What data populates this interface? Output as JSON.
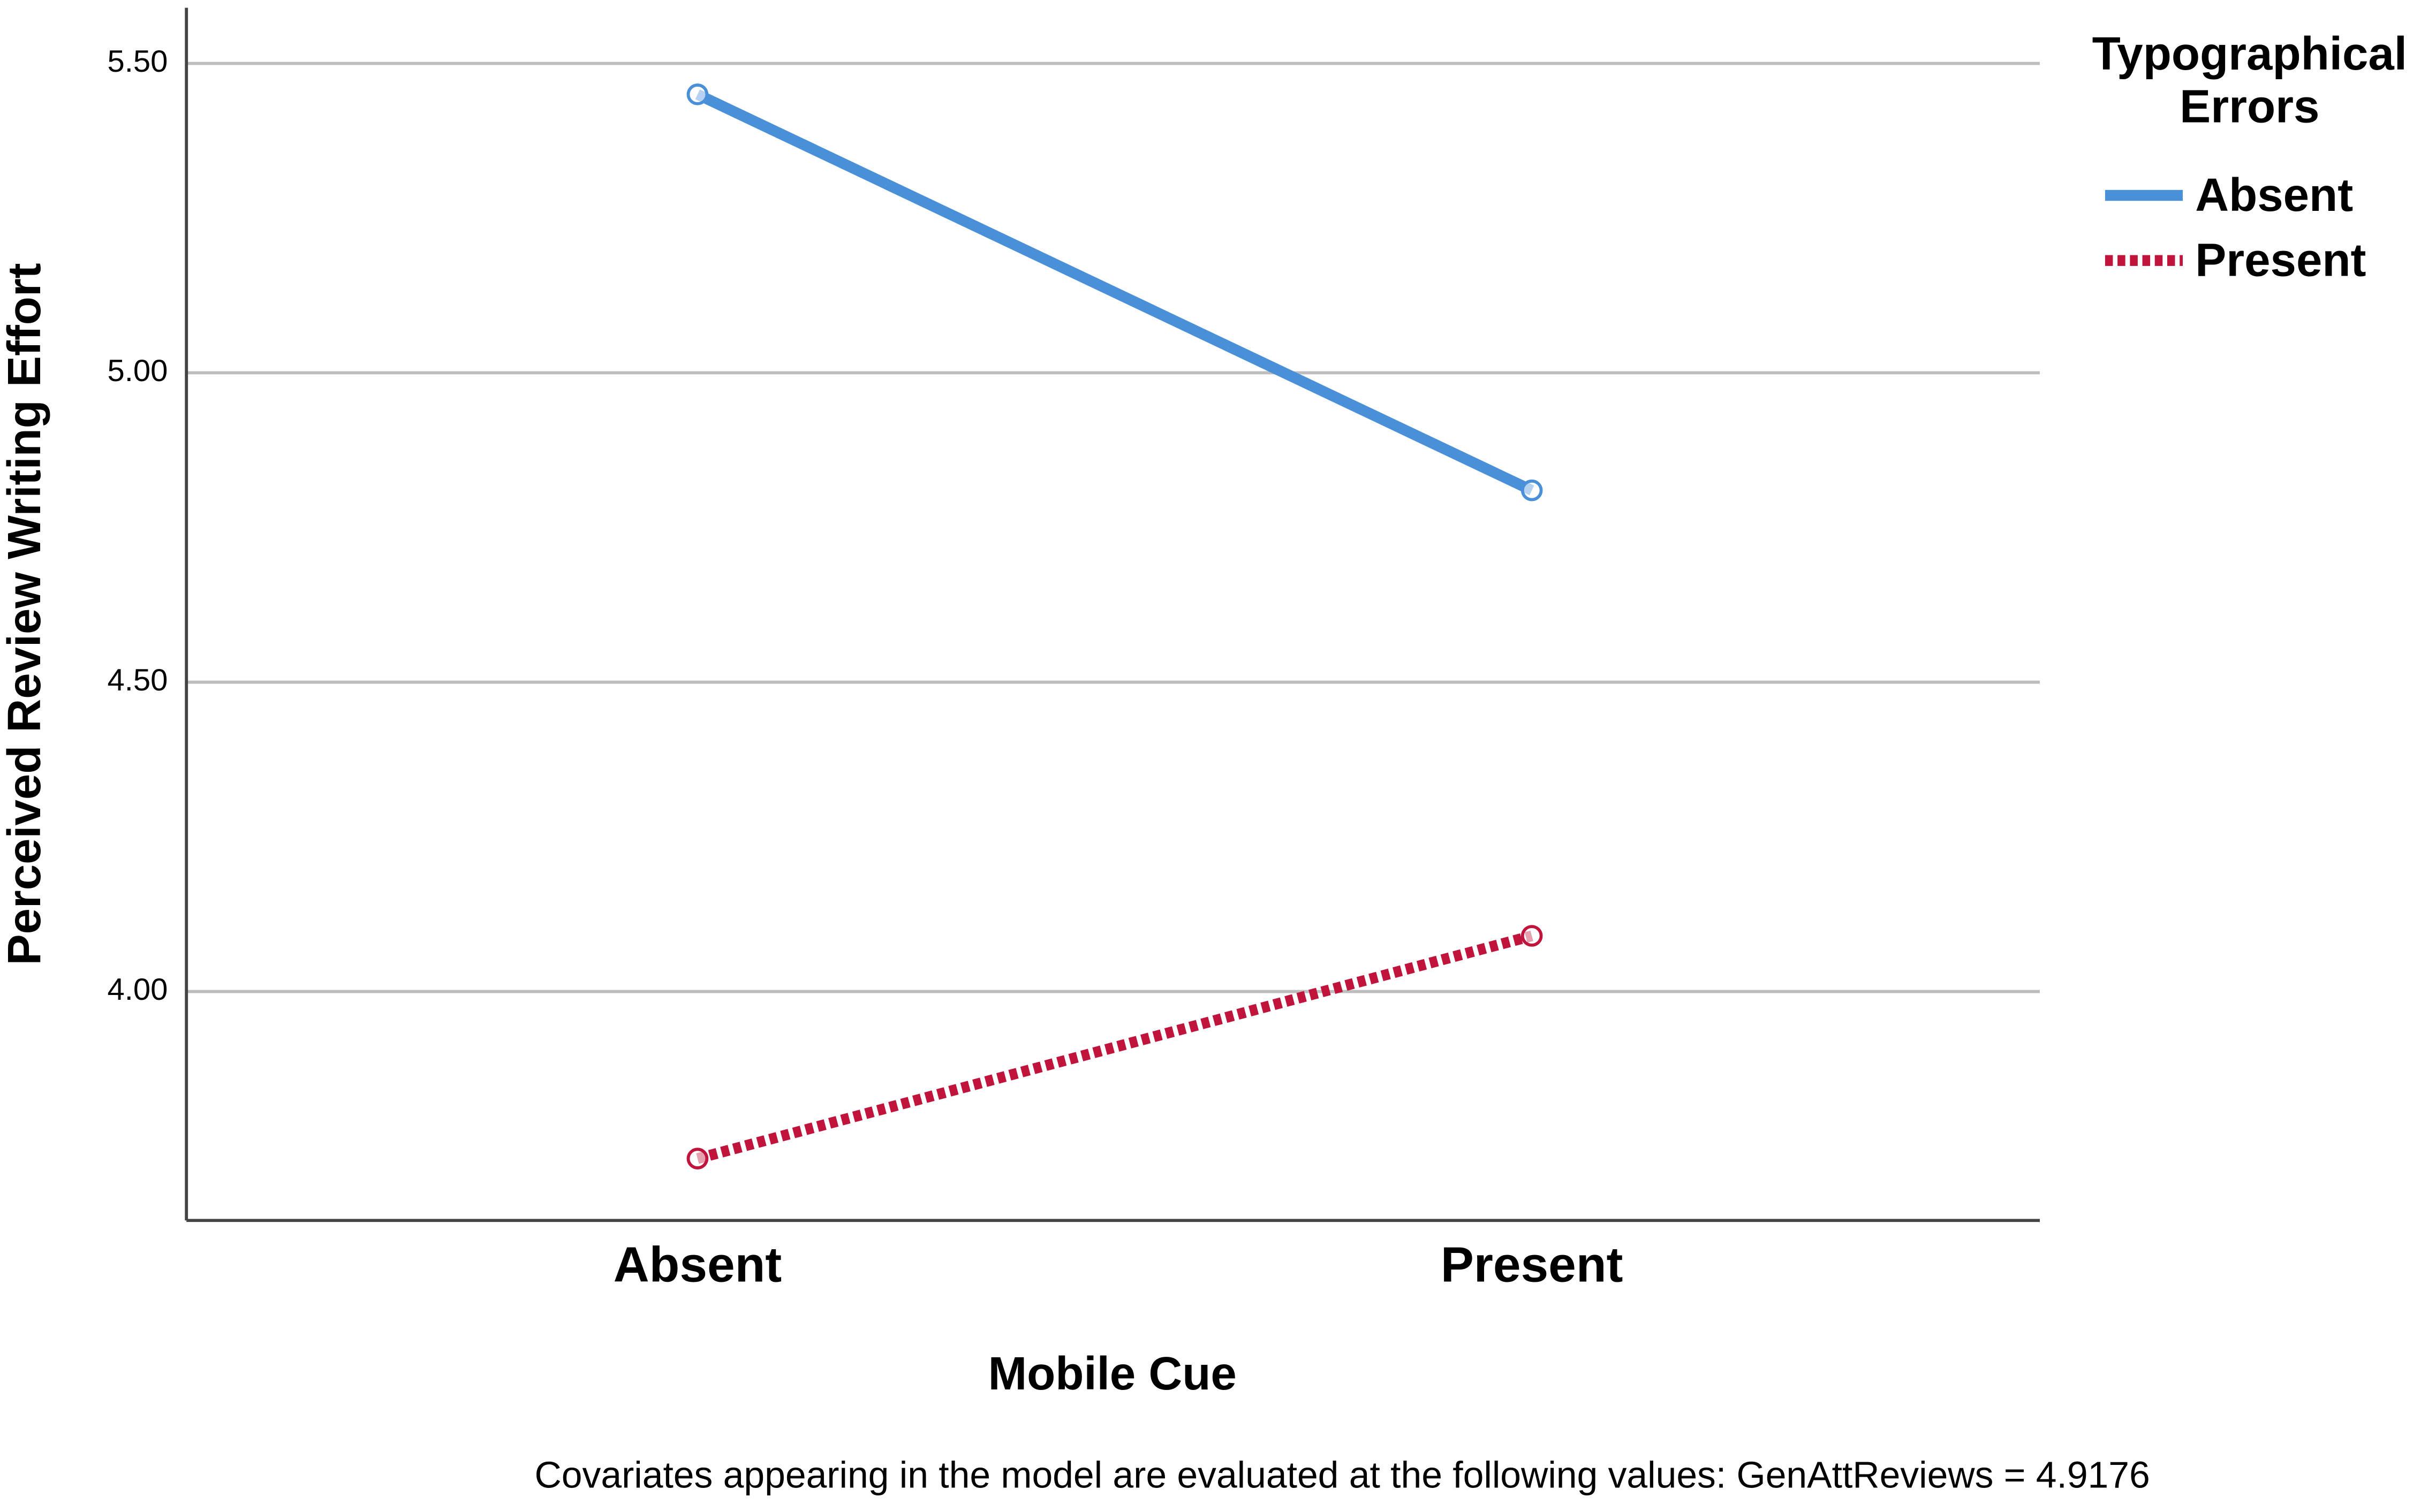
{
  "chart_data": {
    "type": "line",
    "x_label": "Mobile Cue",
    "y_label": "Perceived Review Writing Effort",
    "legend_title": [
      "Typographical",
      "Errors"
    ],
    "legend_position": "right",
    "footnote": "Covariates appearing in the model are evaluated at the following values: GenAttReviews = 4.9176",
    "categories": [
      "Absent",
      "Present"
    ],
    "series": [
      {
        "name": "Absent",
        "color": "#4a90d9",
        "dash": "solid",
        "values": [
          5.45,
          4.81
        ]
      },
      {
        "name": "Present",
        "color": "#c0143c",
        "dash": "dotted",
        "values": [
          3.73,
          4.09
        ]
      }
    ],
    "ylim": [
      3.63,
      5.59
    ],
    "yticks": [
      {
        "value": 4,
        "label": "4.00"
      },
      {
        "value": 4.5,
        "label": "4.50"
      },
      {
        "value": 5,
        "label": "5.00"
      },
      {
        "value": 5.5,
        "label": "5.50"
      }
    ],
    "grid": true
  }
}
